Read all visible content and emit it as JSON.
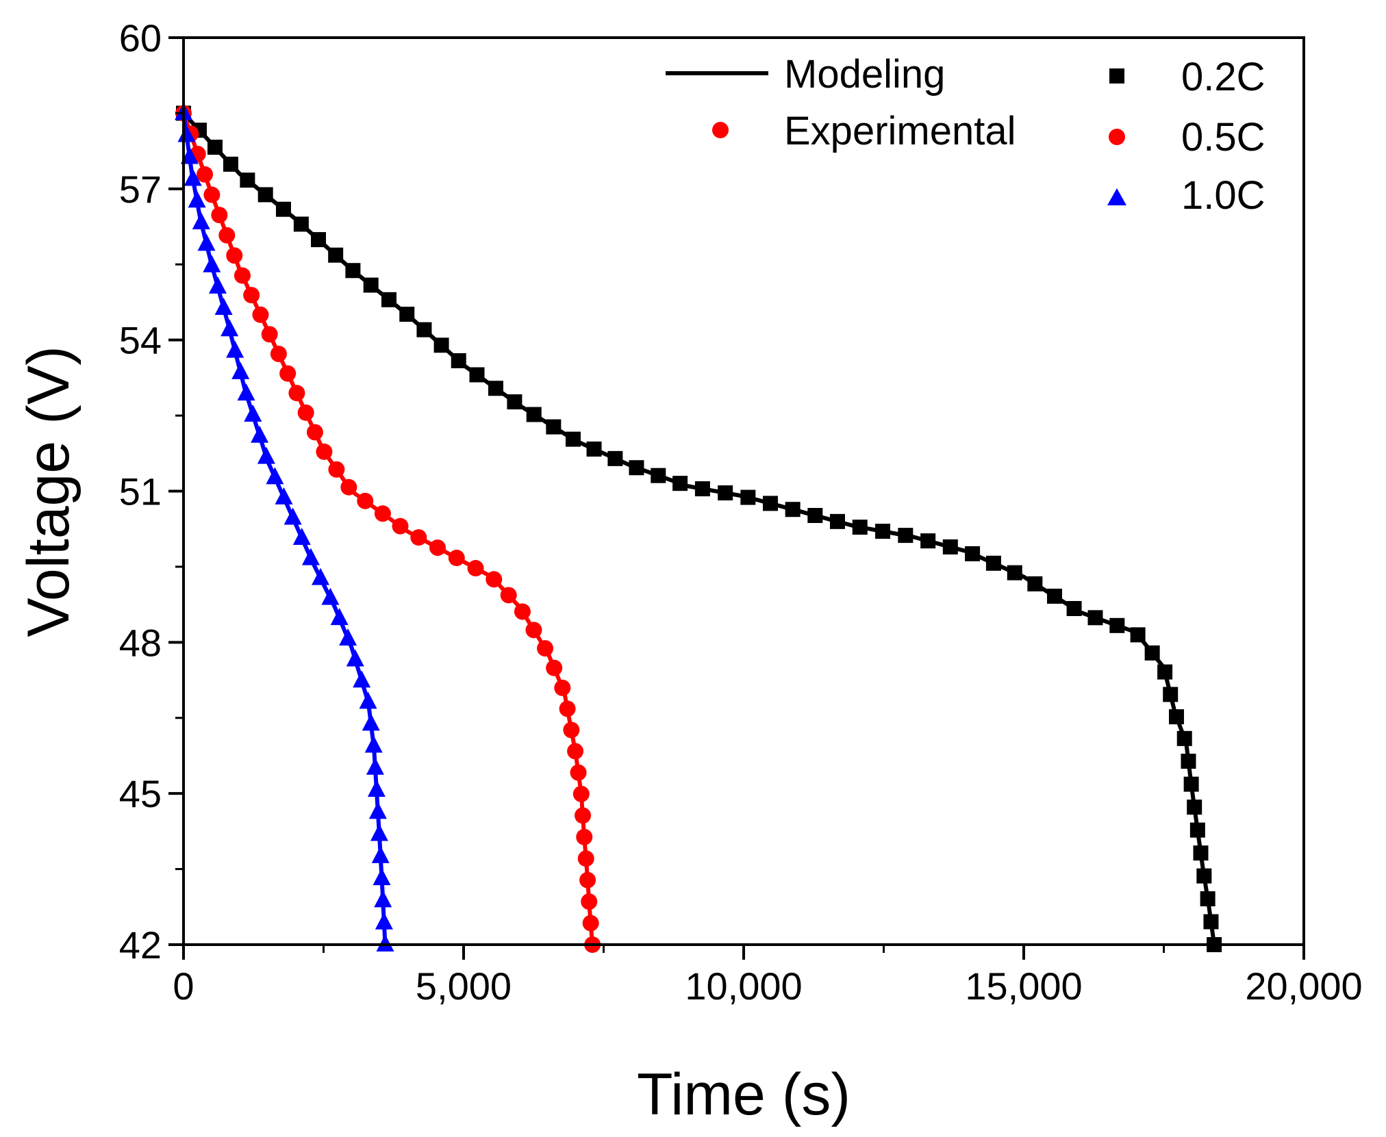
{
  "chart_data": {
    "type": "line",
    "xlabel": "Time (s)",
    "ylabel": "Voltage (V)",
    "xlim": [
      0,
      20000
    ],
    "ylim": [
      42,
      60
    ],
    "x_ticks": [
      0,
      5000,
      10000,
      15000,
      20000
    ],
    "x_tick_labels": [
      "0",
      "5,000",
      "10,000",
      "15,000",
      "20,000"
    ],
    "y_ticks": [
      42,
      45,
      48,
      51,
      54,
      57,
      60
    ],
    "y_tick_labels": [
      "42",
      "45",
      "48",
      "51",
      "54",
      "57",
      "60"
    ],
    "legend": {
      "placement": "top-right",
      "modeling_label": "Modeling",
      "experimental_label": "Experimental"
    },
    "series": [
      {
        "name": "0.2C",
        "color": "#000000",
        "marker": "square",
        "x": [
          0,
          1000,
          2000,
          3000,
          4000,
          5000,
          6000,
          7000,
          8000,
          9000,
          10000,
          11000,
          12000,
          13000,
          14000,
          15000,
          16000,
          17000,
          17500,
          17700,
          17900,
          18000,
          18100,
          18200,
          18300,
          18400
        ],
        "y": [
          58.5,
          57.3,
          56.4,
          55.4,
          54.5,
          53.5,
          52.7,
          52.0,
          51.5,
          51.1,
          50.9,
          50.6,
          50.3,
          50.1,
          49.8,
          49.3,
          48.6,
          48.2,
          47.5,
          46.6,
          46.0,
          45.1,
          44.3,
          43.5,
          42.8,
          42.0
        ],
        "n_markers": 63
      },
      {
        "name": "0.5C",
        "color": "#ff0000",
        "marker": "circle",
        "x": [
          0,
          500,
          1000,
          1500,
          2000,
          2500,
          3000,
          3500,
          4000,
          4500,
          5000,
          5500,
          6000,
          6500,
          6800,
          7000,
          7100,
          7150,
          7200,
          7250,
          7300
        ],
        "y": [
          58.5,
          56.9,
          55.4,
          54.2,
          53.0,
          51.8,
          51.0,
          50.6,
          50.2,
          49.9,
          49.6,
          49.3,
          48.7,
          47.8,
          47.0,
          45.8,
          45.0,
          44.2,
          43.5,
          42.7,
          42.0
        ],
        "n_markers": 46
      },
      {
        "name": "1.0C",
        "color": "#0000ff",
        "marker": "triangle",
        "x": [
          0,
          150,
          300,
          500,
          800,
          1100,
          1500,
          1900,
          2300,
          2700,
          3000,
          3300,
          3400,
          3450,
          3500,
          3550,
          3600
        ],
        "y": [
          58.5,
          57.3,
          56.4,
          55.5,
          54.3,
          53.0,
          51.6,
          50.6,
          49.6,
          48.7,
          47.9,
          46.8,
          45.9,
          45.0,
          44.1,
          43.1,
          42.0
        ],
        "n_markers": 40
      }
    ]
  }
}
